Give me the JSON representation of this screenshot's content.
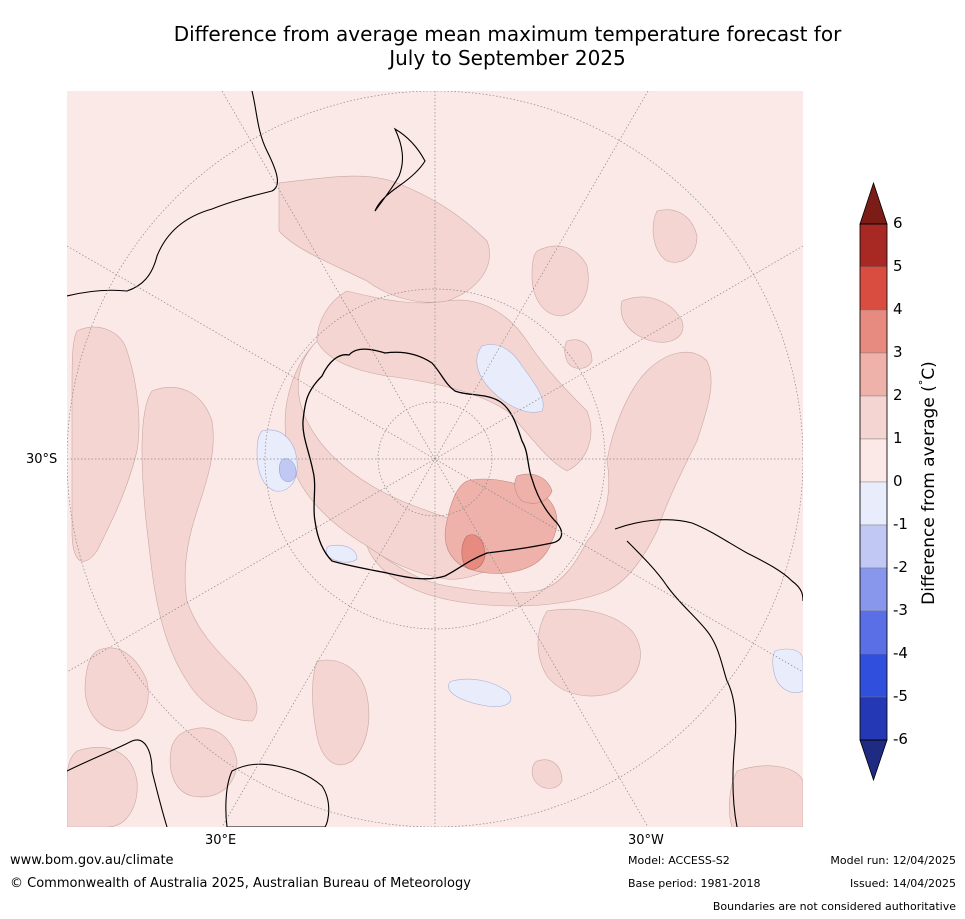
{
  "title_line1": "Difference from average mean maximum temperature forecast for",
  "title_line2": "July to September 2025",
  "map": {
    "projection": "south-polar-stereographic",
    "lat_labels": [
      "30°S"
    ],
    "lon_labels": [
      "30°E",
      "30°W"
    ]
  },
  "colorbar": {
    "label": "Difference from average (°C)",
    "label_prefix": "Difference from average (",
    "label_degree": "°",
    "label_suffix": "C)",
    "ticks": [
      "6",
      "5",
      "4",
      "3",
      "2",
      "1",
      "0",
      "-1",
      "-2",
      "-3",
      "-4",
      "-5",
      "-6"
    ],
    "extend": "both",
    "colors_high_to_low": [
      "#a82823",
      "#d94c40",
      "#e78a80",
      "#eeb2aa",
      "#f5d5d1",
      "#fbe9e7",
      "#e9ecfb",
      "#c0c8f3",
      "#8896ec",
      "#5a6ee6",
      "#2f4fdc",
      "#2438b5"
    ],
    "over_color": "#7b1c17",
    "under_color": "#1f2b82"
  },
  "footer": {
    "website": "www.bom.gov.au/climate",
    "copyright": "© Commonwealth of Australia 2025, Australian Bureau of Meteorology",
    "model": "Model: ACCESS-S2",
    "base_period": "Base period: 1981-2018",
    "model_run": "Model run: 12/04/2025",
    "issued": "Issued: 14/04/2025",
    "disclaimer": "Boundaries are not considered authoritative"
  }
}
